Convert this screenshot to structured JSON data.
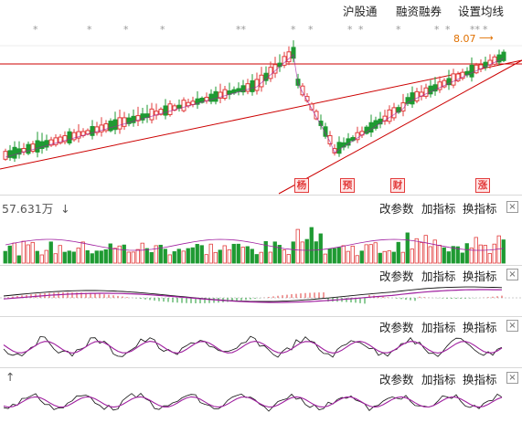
{
  "toolbar": {
    "link1": "沪股通",
    "link2": "融资融券",
    "link3": "设置均线"
  },
  "price_chart": {
    "max_price_label": "8.07",
    "star_marks": [
      "*",
      "*",
      "*",
      "*",
      "**",
      "*",
      "*",
      "*",
      "*",
      "*",
      "*",
      "*",
      "**",
      "*"
    ],
    "event_tags": [
      "杨",
      "预",
      "财",
      "涨"
    ],
    "colors": {
      "up": "#e23b3b",
      "down": "#1e9a32",
      "line": "#cc0000",
      "ma": "#a020a0"
    }
  },
  "volume_panel": {
    "label": "57.631万",
    "arrow": "↓",
    "btn_params": "改参数",
    "btn_add": "加指标",
    "btn_switch": "换指标",
    "close": "×"
  },
  "panel2": {
    "btn_params": "改参数",
    "btn_add": "加指标",
    "btn_switch": "换指标",
    "close": "×"
  },
  "panel3": {
    "btn_params": "改参数",
    "btn_add": "加指标",
    "btn_switch": "换指标",
    "close": "×"
  },
  "panel4": {
    "arrow": "↑",
    "btn_params": "改参数",
    "btn_add": "加指标",
    "btn_switch": "换指标",
    "close": "×"
  }
}
